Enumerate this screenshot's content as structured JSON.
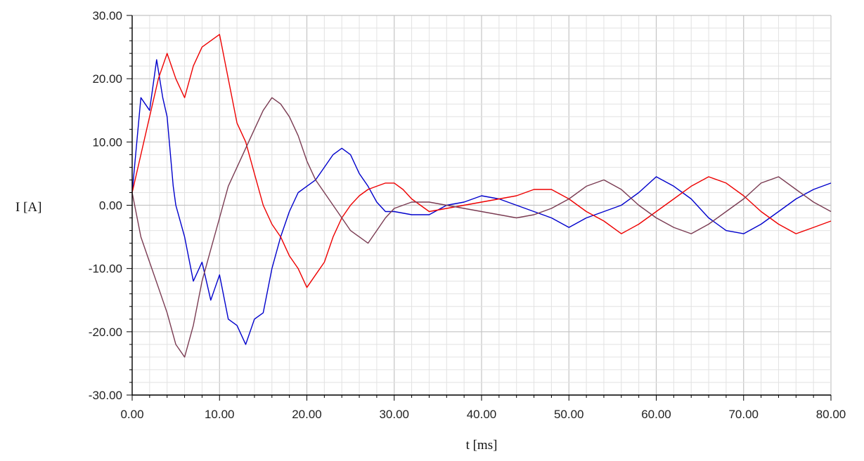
{
  "chart_data": {
    "type": "line",
    "title": "",
    "xlabel": "t [ms]",
    "ylabel": "I [A]",
    "xlim": [
      0,
      80
    ],
    "ylim": [
      -30,
      30
    ],
    "x_ticks": [
      0,
      10,
      20,
      30,
      40,
      50,
      60,
      70,
      80
    ],
    "y_ticks": [
      -30,
      -20,
      -10,
      0,
      10,
      20,
      30
    ],
    "x_tick_labels": [
      "0.00",
      "10.00",
      "20.00",
      "30.00",
      "40.00",
      "50.00",
      "60.00",
      "70.00",
      "80.00"
    ],
    "y_tick_labels": [
      "-30.00",
      "-20.00",
      "-10.00",
      "0.00",
      "10.00",
      "20.00",
      "30.00"
    ],
    "grid": true,
    "legend": "none",
    "series": [
      {
        "color": "#0000cc",
        "x": [
          0,
          1,
          2,
          2.8,
          3.5,
          4,
          4.7,
          5,
          6,
          7,
          8,
          9,
          10,
          11,
          12,
          13,
          14,
          15,
          16,
          17,
          18,
          19,
          20,
          21,
          22,
          23,
          24,
          25,
          26,
          27,
          28,
          29,
          30,
          32,
          34,
          36,
          38,
          40,
          42,
          44,
          46,
          48,
          50,
          52,
          54,
          56,
          58,
          60,
          62,
          64,
          66,
          68,
          70,
          72,
          74,
          76,
          78,
          80
        ],
        "y": [
          2,
          17,
          15,
          23,
          17,
          14,
          3,
          0,
          -5,
          -12,
          -9,
          -15,
          -11,
          -18,
          -19,
          -22,
          -18,
          -17,
          -10,
          -5,
          -1,
          2,
          3,
          4,
          6,
          8,
          9,
          8,
          5,
          3,
          0.5,
          -1,
          -1,
          -1.5,
          -1.5,
          0,
          0.5,
          1.5,
          1,
          0,
          -1,
          -2,
          -3.5,
          -2,
          -1,
          0,
          2,
          4.5,
          3,
          1,
          -2,
          -4,
          -4.5,
          -3,
          -1,
          1,
          2.5,
          3.5
        ]
      },
      {
        "color": "#ee0000",
        "x": [
          0,
          1,
          2,
          3,
          4,
          5,
          6,
          7,
          8,
          9,
          10,
          11,
          12,
          13,
          14,
          15,
          16,
          17,
          18,
          19,
          20,
          21,
          22,
          23,
          24,
          25,
          26,
          27,
          28,
          29,
          30,
          31,
          32,
          34,
          36,
          38,
          40,
          42,
          44,
          46,
          48,
          50,
          52,
          54,
          56,
          58,
          60,
          62,
          64,
          66,
          68,
          70,
          72,
          74,
          76,
          78,
          80
        ],
        "y": [
          2,
          8,
          14,
          20,
          24,
          20,
          17,
          22,
          25,
          26,
          27,
          20,
          13,
          10,
          5,
          0,
          -3,
          -5,
          -8,
          -10,
          -13,
          -11,
          -9,
          -5,
          -2,
          0,
          1.5,
          2.5,
          3,
          3.5,
          3.5,
          2.5,
          1,
          -1,
          -0.5,
          0,
          0.5,
          1,
          1.5,
          2.5,
          2.5,
          1,
          -1,
          -2.5,
          -4.5,
          -3,
          -1,
          1,
          3,
          4.5,
          3.5,
          1.5,
          -1,
          -3,
          -4.5,
          -3.5,
          -2.5
        ]
      },
      {
        "color": "#7a3b52",
        "x": [
          0,
          1,
          2,
          3,
          4,
          5,
          6,
          7,
          8,
          9,
          10,
          11,
          12,
          13,
          14,
          15,
          16,
          17,
          18,
          19,
          20,
          21,
          22,
          23,
          24,
          25,
          26,
          27,
          28,
          29,
          30,
          31,
          32,
          34,
          36,
          38,
          40,
          42,
          44,
          46,
          48,
          50,
          52,
          54,
          56,
          58,
          60,
          62,
          64,
          66,
          68,
          70,
          72,
          74,
          76,
          78,
          80
        ],
        "y": [
          2,
          -5,
          -9,
          -13,
          -17,
          -22,
          -24,
          -19,
          -12,
          -7,
          -2,
          3,
          6,
          9,
          12,
          15,
          17,
          16,
          14,
          11,
          7,
          4,
          2,
          0,
          -2,
          -4,
          -5,
          -6,
          -4,
          -2,
          -0.5,
          0,
          0.5,
          0.5,
          0,
          -0.5,
          -1,
          -1.5,
          -2,
          -1.5,
          -0.5,
          1,
          3,
          4,
          2.5,
          0,
          -2,
          -3.5,
          -4.5,
          -3,
          -1,
          1,
          3.5,
          4.5,
          2.5,
          0.5,
          -1
        ]
      }
    ]
  }
}
